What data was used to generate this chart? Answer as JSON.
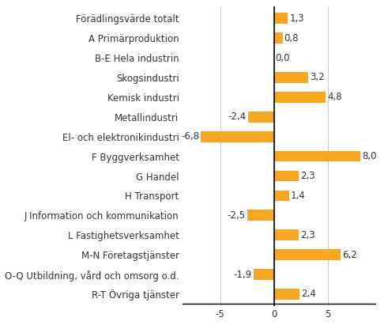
{
  "categories": [
    "Förädlingsvärde totalt",
    "A Primärproduktion",
    "B-E Hela industrin",
    "Skogsindustri",
    "Kemisk industri",
    "Metallindustri",
    "El- och elektronikindustri",
    "F Byggverksamhet",
    "G Handel",
    "H Transport",
    "J Information och kommunikation",
    "L Fastighetsverksamhet",
    "M-N Företagstjänster",
    "O-Q Utbildning, vård och omsorg o.d.",
    "R-T Övriga tjänster"
  ],
  "values": [
    1.3,
    0.8,
    0.0,
    3.2,
    4.8,
    -2.4,
    -6.8,
    8.0,
    2.3,
    1.4,
    -2.5,
    2.3,
    6.2,
    -1.9,
    2.4
  ],
  "bar_color": "#F5A623",
  "label_color": "#333333",
  "background_color": "#ffffff",
  "xlim": [
    -8.5,
    9.5
  ],
  "xticks": [
    -5,
    0,
    5
  ],
  "fontsize_labels": 8.5,
  "fontsize_values": 8.5,
  "bar_height": 0.55
}
